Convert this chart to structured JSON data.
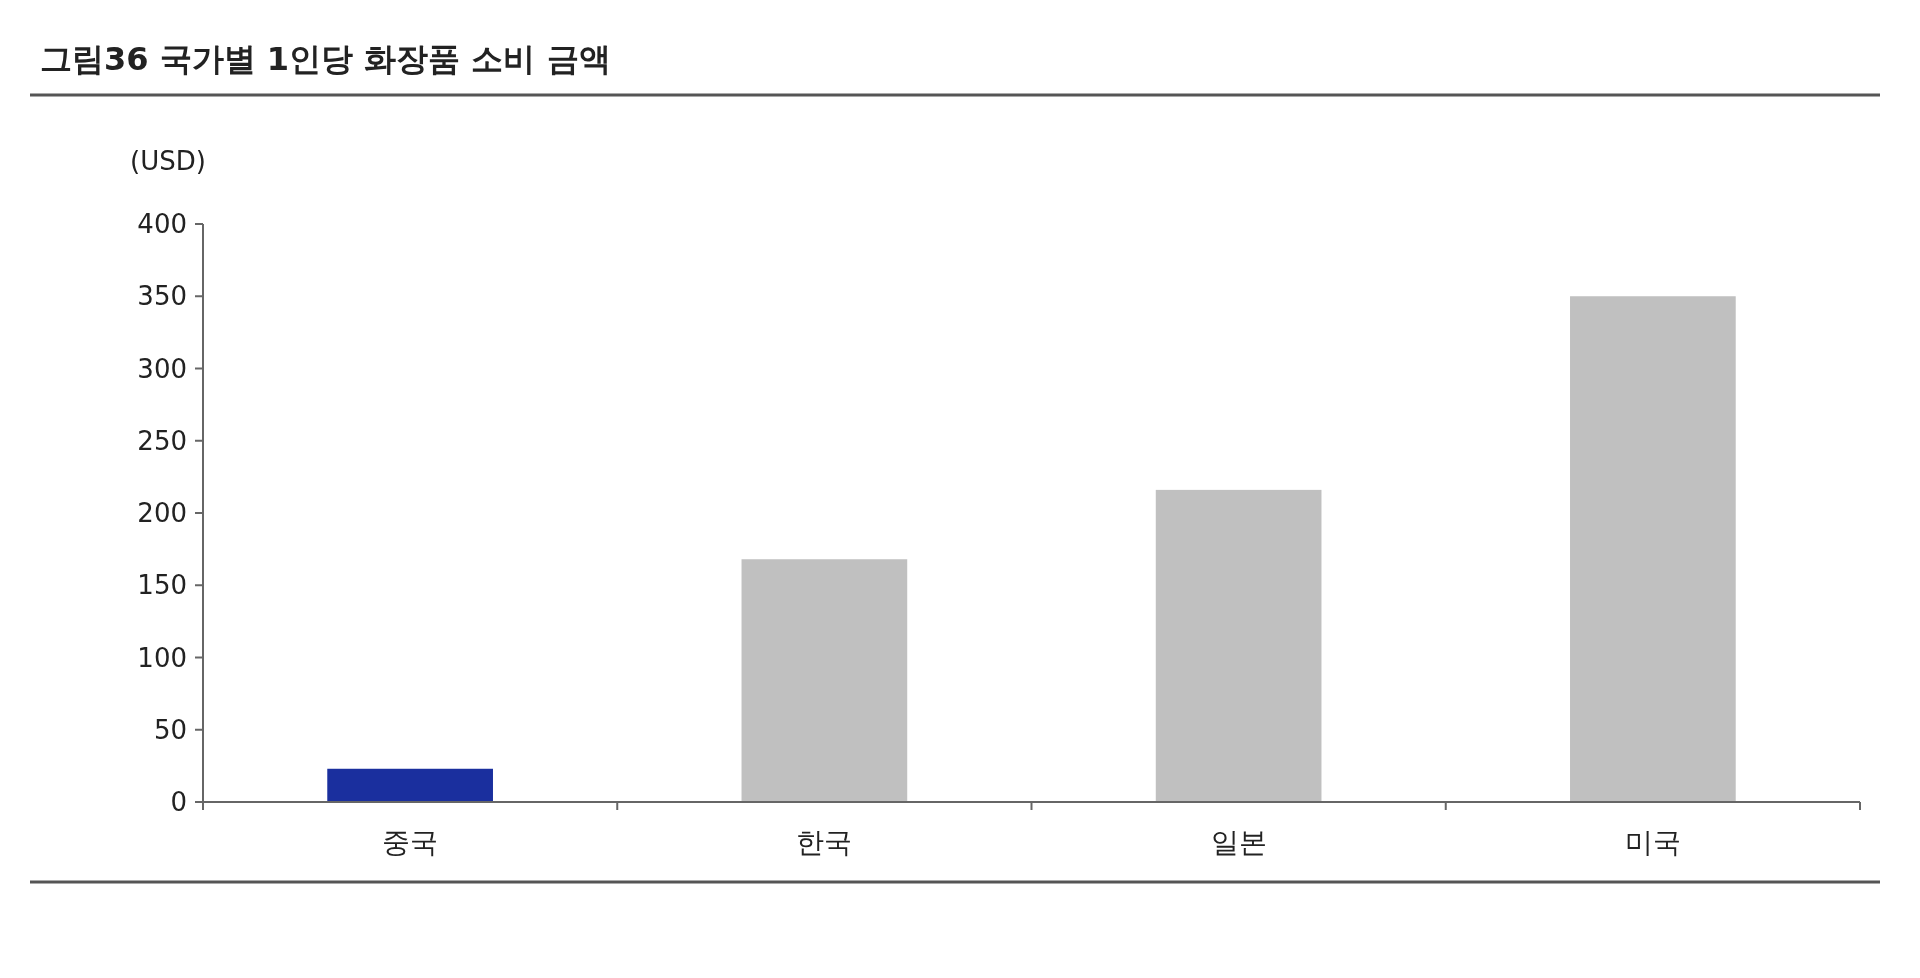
{
  "chart_data": {
    "type": "bar",
    "title": "그림36 국가별 1인당 화장품 소비 금액",
    "ylabel": "(USD)",
    "categories": [
      "중국",
      "한국",
      "일본",
      "미국"
    ],
    "values": [
      23,
      168,
      216,
      350
    ],
    "colors": [
      "#1a2f9e",
      "#c0c0c0",
      "#c0c0c0",
      "#c0c0c0"
    ],
    "ylim": [
      0,
      400
    ],
    "yticks": [
      0,
      50,
      100,
      150,
      200,
      250,
      300,
      350,
      400
    ]
  }
}
